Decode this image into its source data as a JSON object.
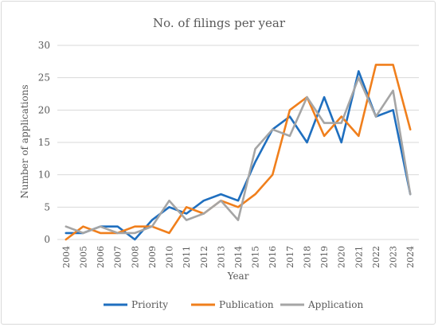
{
  "chart_data": {
    "type": "line",
    "title": "No. of filings per year",
    "xlabel": "Year",
    "ylabel": "Number of applications",
    "ylim": [
      0,
      30
    ],
    "yticks": [
      0,
      5,
      10,
      15,
      20,
      25,
      30
    ],
    "grid": true,
    "legend_position": "bottom",
    "categories": [
      "2004",
      "2005",
      "2006",
      "2007",
      "2008",
      "2009",
      "2010",
      "2011",
      "2012",
      "2013",
      "2014",
      "2015",
      "2016",
      "2017",
      "2018",
      "2019",
      "2020",
      "2021",
      "2022",
      "2023",
      "2024"
    ],
    "series": [
      {
        "name": "Priority",
        "color": "#1f6fbf",
        "values": [
          1,
          1,
          2,
          2,
          0,
          3,
          5,
          4,
          6,
          7,
          6,
          12,
          17,
          19,
          15,
          22,
          15,
          26,
          19,
          20,
          7
        ]
      },
      {
        "name": "Publication",
        "color": "#f07f1c",
        "values": [
          0,
          2,
          1,
          1,
          2,
          2,
          1,
          5,
          4,
          6,
          5,
          7,
          10,
          20,
          22,
          16,
          19,
          16,
          27,
          27,
          17
        ]
      },
      {
        "name": "Application",
        "color": "#a5a5a5",
        "values": [
          2,
          1,
          2,
          1,
          1,
          2,
          6,
          3,
          4,
          6,
          3,
          14,
          17,
          16,
          22,
          18,
          18,
          25,
          19,
          23,
          7
        ]
      }
    ]
  }
}
